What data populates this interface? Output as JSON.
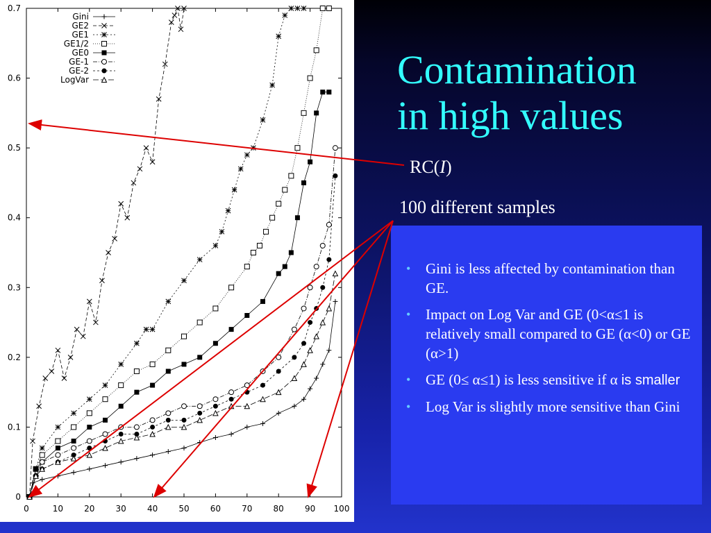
{
  "slide": {
    "title_line1": "Contamination",
    "title_line2": "in high values",
    "rc_label_prefix": "RC(",
    "rc_label_var": "I",
    "rc_label_suffix": ")",
    "samples_label": "100 different samples"
  },
  "notes": [
    {
      "text": "Gini is less affected by contamination than GE.",
      "tail": ""
    },
    {
      "text": "Impact on Log Var and GE (0<α≤1 is relatively small compared to GE (α<0) or GE (α>1)",
      "tail": ""
    },
    {
      "text": "GE (0≤ α≤1) is less sensitive if α ",
      "tail": "is smaller"
    },
    {
      "text": "Log Var is slightly more sensitive than Gini",
      "tail": ""
    }
  ],
  "colors": {
    "title": "#33ffff",
    "text": "#ffffff",
    "notes_box": "#2a3bf0",
    "bullet": "#66ccff",
    "arrow": "#dd0000"
  },
  "chart_data": {
    "type": "line",
    "title": "",
    "xlabel": "",
    "ylabel": "",
    "xlim": [
      0,
      100
    ],
    "ylim": [
      0,
      0.7
    ],
    "xticks": [
      "0",
      "10",
      "20",
      "30",
      "40",
      "50",
      "60",
      "70",
      "80",
      "90",
      "100"
    ],
    "yticks": [
      "0",
      "0.1",
      "0.2",
      "0.3",
      "0.4",
      "0.5",
      "0.6",
      "0.7"
    ],
    "legend_position": "top-left",
    "grid": false,
    "series": [
      {
        "name": "Gini",
        "marker": "plus",
        "dash": "",
        "x": [
          1,
          2,
          5,
          10,
          15,
          20,
          25,
          30,
          35,
          40,
          45,
          50,
          55,
          60,
          65,
          70,
          75,
          80,
          85,
          88,
          90,
          92,
          94,
          96,
          98
        ],
        "y": [
          0.0,
          0.02,
          0.025,
          0.03,
          0.035,
          0.04,
          0.045,
          0.05,
          0.055,
          0.06,
          0.065,
          0.07,
          0.078,
          0.085,
          0.09,
          0.1,
          0.105,
          0.12,
          0.13,
          0.14,
          0.155,
          0.17,
          0.19,
          0.21,
          0.28
        ]
      },
      {
        "name": "GE2",
        "marker": "x",
        "dash": "5,3",
        "x": [
          1,
          2,
          4,
          6,
          8,
          10,
          12,
          14,
          16,
          18,
          20,
          22,
          24,
          26,
          28,
          30,
          32,
          34,
          36,
          38,
          40,
          42,
          44,
          46,
          47,
          48,
          49,
          50
        ],
        "y": [
          0.0,
          0.08,
          0.13,
          0.17,
          0.18,
          0.21,
          0.17,
          0.2,
          0.24,
          0.23,
          0.28,
          0.25,
          0.31,
          0.35,
          0.37,
          0.42,
          0.4,
          0.45,
          0.47,
          0.5,
          0.48,
          0.57,
          0.62,
          0.68,
          0.69,
          0.7,
          0.67,
          0.7
        ]
      },
      {
        "name": "GE1",
        "marker": "asterisk",
        "dash": "2,3",
        "x": [
          1,
          3,
          5,
          10,
          15,
          20,
          25,
          30,
          35,
          38,
          40,
          45,
          50,
          55,
          60,
          62,
          64,
          66,
          68,
          70,
          72,
          75,
          78,
          80,
          82,
          84,
          86,
          88
        ],
        "y": [
          0.0,
          0.04,
          0.07,
          0.1,
          0.12,
          0.14,
          0.16,
          0.19,
          0.22,
          0.24,
          0.24,
          0.28,
          0.31,
          0.34,
          0.36,
          0.38,
          0.41,
          0.44,
          0.47,
          0.49,
          0.5,
          0.54,
          0.59,
          0.66,
          0.69,
          0.7,
          0.7,
          0.7
        ]
      },
      {
        "name": "GE1/2",
        "marker": "square-open",
        "dash": "1,2",
        "x": [
          1,
          3,
          5,
          10,
          15,
          20,
          25,
          30,
          35,
          40,
          45,
          50,
          55,
          60,
          65,
          70,
          72,
          74,
          76,
          78,
          80,
          82,
          84,
          86,
          88,
          90,
          92,
          94,
          96
        ],
        "y": [
          0.0,
          0.04,
          0.06,
          0.08,
          0.1,
          0.12,
          0.14,
          0.16,
          0.18,
          0.19,
          0.21,
          0.23,
          0.25,
          0.27,
          0.3,
          0.33,
          0.35,
          0.36,
          0.38,
          0.4,
          0.42,
          0.44,
          0.46,
          0.5,
          0.55,
          0.6,
          0.64,
          0.7,
          0.7
        ]
      },
      {
        "name": "GE0",
        "marker": "square-filled",
        "dash": "",
        "x": [
          1,
          3,
          5,
          10,
          15,
          20,
          25,
          30,
          35,
          40,
          45,
          50,
          55,
          60,
          65,
          70,
          75,
          80,
          82,
          84,
          86,
          88,
          90,
          92,
          94,
          96
        ],
        "y": [
          0.0,
          0.04,
          0.05,
          0.07,
          0.08,
          0.1,
          0.11,
          0.13,
          0.15,
          0.16,
          0.18,
          0.19,
          0.2,
          0.22,
          0.24,
          0.26,
          0.28,
          0.32,
          0.33,
          0.35,
          0.4,
          0.45,
          0.48,
          0.55,
          0.58,
          0.58
        ]
      },
      {
        "name": "GE-1",
        "marker": "circle-open",
        "dash": "6,2,1,2",
        "x": [
          1,
          3,
          5,
          10,
          15,
          20,
          25,
          30,
          35,
          40,
          45,
          50,
          55,
          60,
          65,
          70,
          75,
          80,
          85,
          88,
          90,
          92,
          94,
          96,
          98
        ],
        "y": [
          0.0,
          0.03,
          0.05,
          0.06,
          0.07,
          0.08,
          0.09,
          0.1,
          0.1,
          0.11,
          0.12,
          0.13,
          0.13,
          0.14,
          0.15,
          0.16,
          0.18,
          0.2,
          0.24,
          0.27,
          0.3,
          0.33,
          0.36,
          0.39,
          0.5
        ]
      },
      {
        "name": "GE-2",
        "marker": "circle-filled",
        "dash": "3,3",
        "x": [
          1,
          3,
          5,
          10,
          15,
          20,
          25,
          30,
          35,
          40,
          45,
          50,
          55,
          60,
          65,
          70,
          75,
          80,
          85,
          88,
          90,
          92,
          94,
          96,
          98
        ],
        "y": [
          0.0,
          0.03,
          0.04,
          0.05,
          0.06,
          0.07,
          0.08,
          0.09,
          0.09,
          0.1,
          0.11,
          0.11,
          0.12,
          0.13,
          0.14,
          0.15,
          0.16,
          0.18,
          0.2,
          0.22,
          0.25,
          0.27,
          0.3,
          0.34,
          0.46
        ]
      },
      {
        "name": "LogVar",
        "marker": "triangle-open",
        "dash": "8,3",
        "x": [
          1,
          3,
          5,
          10,
          15,
          20,
          25,
          30,
          35,
          40,
          45,
          50,
          55,
          60,
          65,
          70,
          75,
          80,
          85,
          88,
          90,
          92,
          94,
          96,
          98
        ],
        "y": [
          0.0,
          0.03,
          0.04,
          0.05,
          0.055,
          0.06,
          0.07,
          0.08,
          0.085,
          0.09,
          0.1,
          0.1,
          0.11,
          0.12,
          0.13,
          0.13,
          0.14,
          0.15,
          0.17,
          0.19,
          0.21,
          0.23,
          0.25,
          0.27,
          0.32
        ]
      }
    ]
  }
}
